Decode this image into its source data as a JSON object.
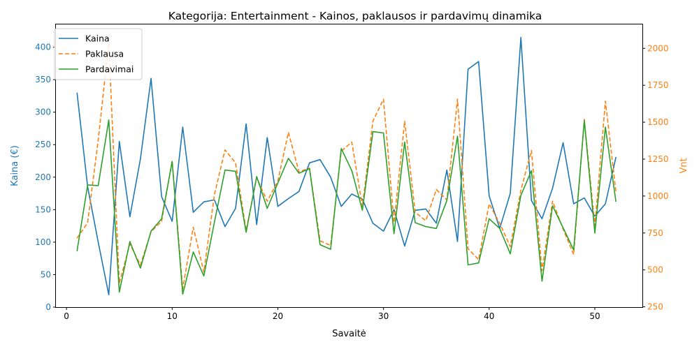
{
  "chart_data": {
    "type": "line",
    "title": "Kategorija: Entertainment - Kainos, paklausos ir pardavimų dinamika",
    "xlabel": "Savaitė",
    "ylabel_left": "Kaina (€)",
    "ylabel_right": "Vnt",
    "xlim": [
      -1,
      54.5
    ],
    "ylim_left": [
      0,
      435
    ],
    "ylim_right": [
      248,
      2162
    ],
    "x_ticks": [
      0,
      10,
      20,
      30,
      40,
      50
    ],
    "y_left_ticks": [
      0,
      50,
      100,
      150,
      200,
      250,
      300,
      350,
      400
    ],
    "y_right_ticks": [
      250,
      500,
      750,
      1000,
      1250,
      1500,
      1750,
      2000
    ],
    "legend_position": "top-left",
    "grid": false,
    "colors": {
      "price": "#1f77b4",
      "demand": "#ff7f0e",
      "sales": "#2ca02c"
    },
    "x": [
      1,
      2,
      3,
      4,
      5,
      6,
      7,
      8,
      9,
      10,
      11,
      12,
      13,
      14,
      15,
      16,
      17,
      18,
      19,
      20,
      21,
      22,
      23,
      24,
      25,
      26,
      27,
      28,
      29,
      30,
      31,
      32,
      33,
      34,
      35,
      36,
      37,
      38,
      39,
      40,
      41,
      42,
      43,
      44,
      45,
      46,
      47,
      48,
      49,
      50,
      51,
      52
    ],
    "series": [
      {
        "name": "Kaina",
        "axis": "left",
        "style": "solid",
        "values": [
          330,
          185,
          100,
          19,
          255,
          139,
          228,
          352,
          170,
          132,
          277,
          146,
          162,
          165,
          124,
          152,
          282,
          127,
          261,
          155,
          167,
          178,
          222,
          227,
          200,
          155,
          174,
          166,
          129,
          117,
          150,
          94,
          149,
          151,
          129,
          211,
          101,
          366,
          378,
          171,
          121,
          175,
          415,
          164,
          136,
          183,
          253,
          159,
          168,
          140,
          159,
          231
        ]
      },
      {
        "name": "Paklausa",
        "axis": "left",
        "style": "dashed",
        "values": [
          106,
          130,
          257,
          406,
          37,
          97,
          65,
          116,
          132,
          225,
          28,
          123,
          54,
          173,
          242,
          222,
          118,
          199,
          163,
          194,
          269,
          208,
          214,
          102,
          95,
          240,
          254,
          155,
          286,
          320,
          130,
          286,
          146,
          133,
          181,
          165,
          320,
          90,
          73,
          159,
          129,
          93,
          180,
          241,
          56,
          163,
          120,
          81,
          289,
          125,
          317,
          177
        ]
      },
      {
        "name": "Pardavimai",
        "axis": "left",
        "style": "solid",
        "values": [
          86,
          188,
          187,
          288,
          23,
          101,
          60,
          117,
          136,
          224,
          20,
          85,
          48,
          131,
          211,
          209,
          115,
          201,
          152,
          191,
          229,
          206,
          213,
          96,
          89,
          244,
          210,
          149,
          270,
          268,
          113,
          254,
          130,
          124,
          121,
          164,
          263,
          65,
          68,
          136,
          121,
          82,
          172,
          210,
          40,
          156,
          122,
          88,
          287,
          114,
          277,
          162
        ]
      }
    ]
  }
}
